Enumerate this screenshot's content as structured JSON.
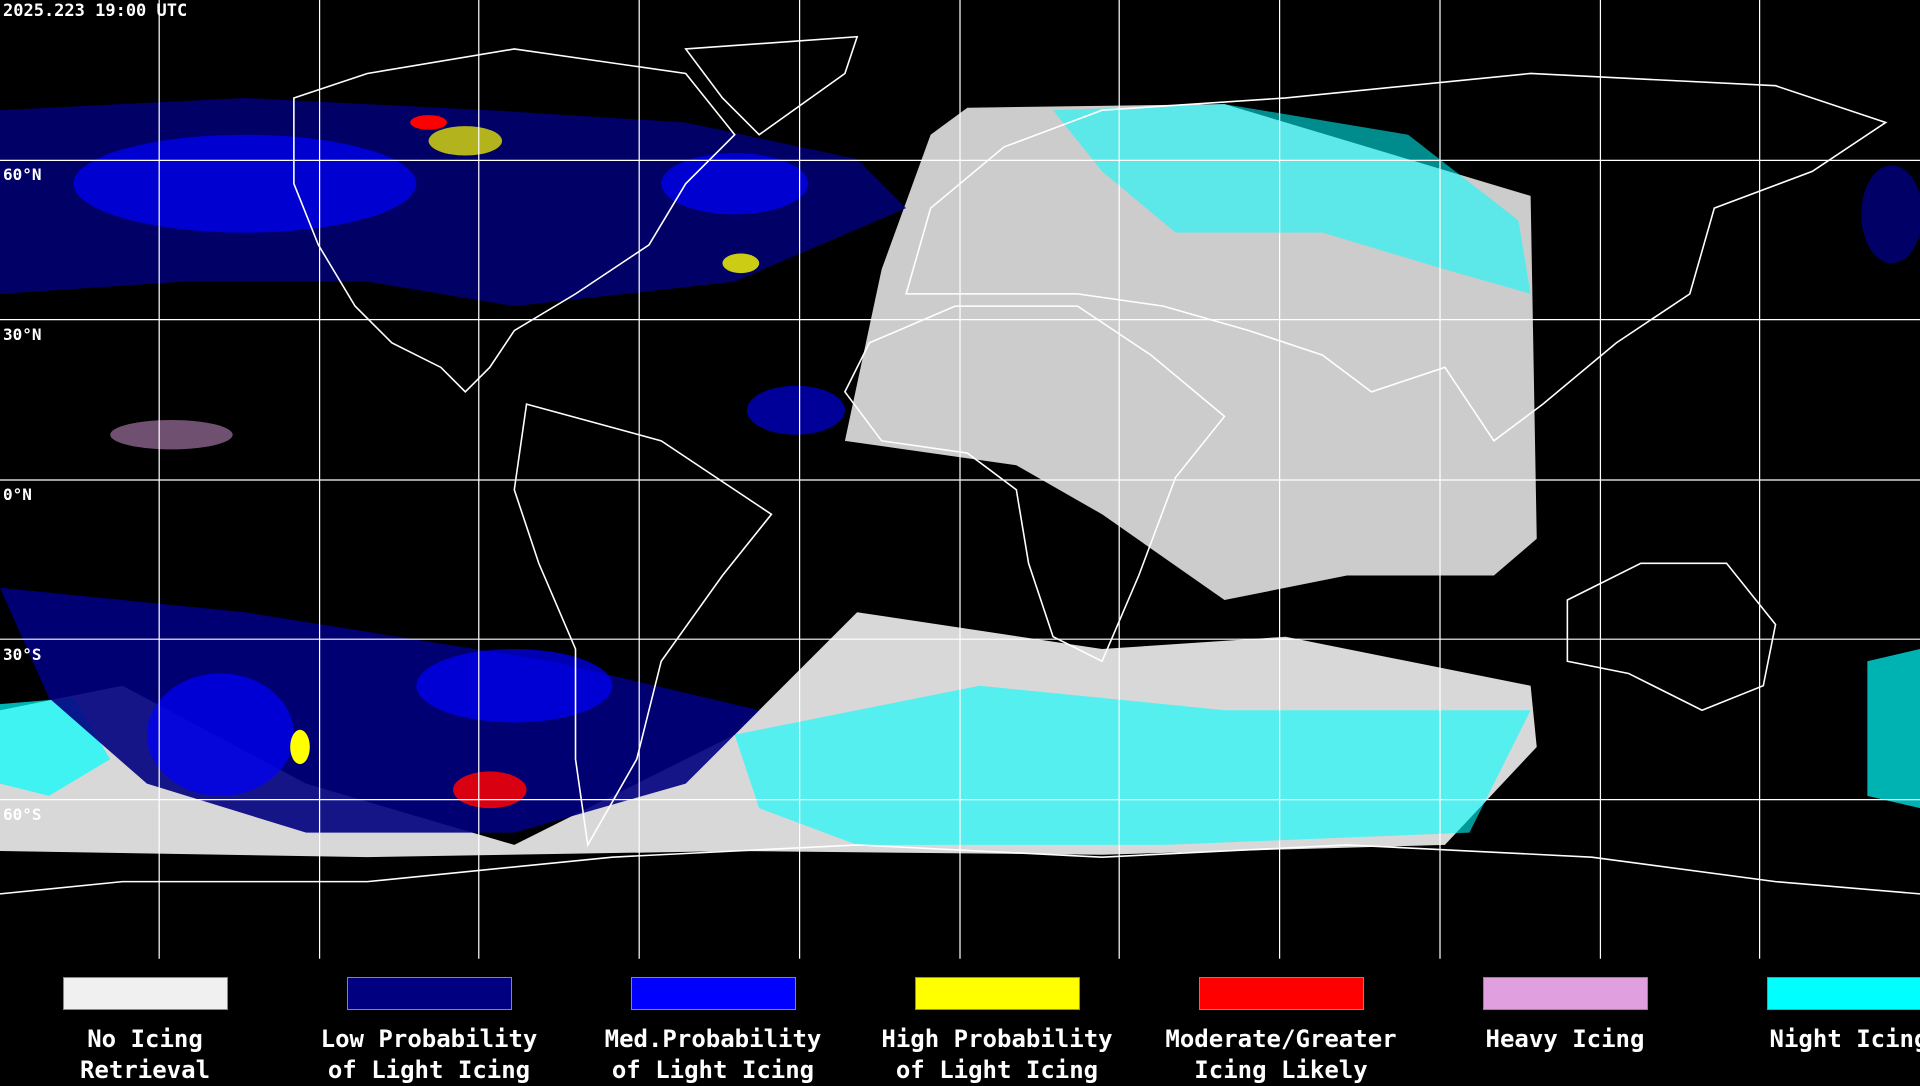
{
  "timestamp": "2025.223 19:00 UTC",
  "latitude_labels": [
    "60°N",
    "30°N",
    "0°N",
    "30°S",
    "60°S"
  ],
  "legend": {
    "items": [
      {
        "label": [
          "No Icing",
          "Retrieval"
        ],
        "color": "#f0f0f0"
      },
      {
        "label": [
          "Low Probability",
          "of Light Icing"
        ],
        "color": "#000080"
      },
      {
        "label": [
          "Med.Probability",
          "of Light Icing"
        ],
        "color": "#0000ff"
      },
      {
        "label": [
          "High Probability",
          "of Light Icing"
        ],
        "color": "#ffff00"
      },
      {
        "label": [
          "Moderate/Greater",
          "Icing Likely"
        ],
        "color": "#ff0000"
      },
      {
        "label": [
          "Heavy Icing"
        ],
        "color": "#e0a0e0"
      },
      {
        "label": [
          "Night Icing"
        ],
        "color": "#00ffff"
      }
    ]
  }
}
